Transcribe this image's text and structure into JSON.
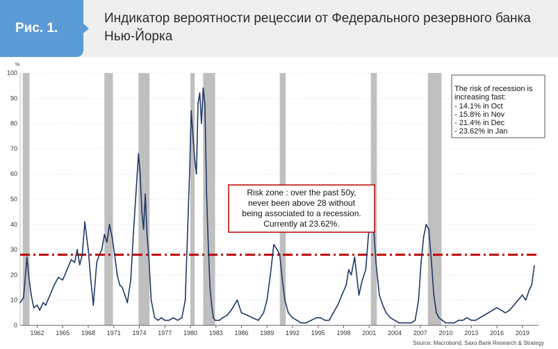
{
  "header": {
    "badge": "Рис. 1.",
    "title": "Индикатор вероятности рецессии от Федерального резервного банка Нью-Йорка"
  },
  "chart_data": {
    "type": "line",
    "y_unit": "%",
    "xlim": [
      1960,
      2020.9
    ],
    "ylim": [
      0,
      100
    ],
    "x_ticks": [
      1962,
      1965,
      1968,
      1971,
      1974,
      1977,
      1980,
      1983,
      1986,
      1989,
      1992,
      1995,
      1998,
      2001,
      2004,
      2007,
      2010,
      2013,
      2016,
      2019
    ],
    "y_ticks": [
      0,
      10,
      20,
      30,
      40,
      50,
      60,
      70,
      80,
      90,
      100
    ],
    "recessions": [
      [
        1960.3,
        1961.1
      ],
      [
        1969.9,
        1970.9
      ],
      [
        1973.9,
        1975.2
      ],
      [
        1980.0,
        1980.5
      ],
      [
        1981.5,
        1982.9
      ],
      [
        1990.5,
        1991.2
      ],
      [
        2001.2,
        2001.9
      ],
      [
        2007.9,
        2009.5
      ]
    ],
    "threshold": 28,
    "series": [
      {
        "x": [
          1960.0,
          1960.4,
          1960.8,
          1961.0,
          1961.3,
          1961.6,
          1962.0,
          1962.3,
          1962.7,
          1963.0,
          1963.5,
          1964.0,
          1964.5,
          1965.0,
          1965.5,
          1966.0,
          1966.4,
          1966.7,
          1967.0,
          1967.3,
          1967.6,
          1968.0,
          1968.3,
          1968.6,
          1969.0,
          1969.3,
          1969.6,
          1969.9,
          1970.2,
          1970.5,
          1970.8,
          1971.1,
          1971.4,
          1971.7,
          1972.0,
          1972.3,
          1972.6,
          1973.0,
          1973.3,
          1973.6,
          1973.9,
          1974.1,
          1974.3,
          1974.5,
          1974.7,
          1974.9,
          1975.1,
          1975.4,
          1975.8,
          1976.2,
          1976.6,
          1977.0,
          1977.5,
          1978.0,
          1978.5,
          1979.0,
          1979.4,
          1979.7,
          1979.9,
          1980.1,
          1980.3,
          1980.5,
          1980.7,
          1980.9,
          1981.1,
          1981.3,
          1981.5,
          1981.7,
          1981.9,
          1982.1,
          1982.3,
          1982.5,
          1982.7,
          1982.9,
          1983.1,
          1983.4,
          1983.8,
          1984.3,
          1984.8,
          1985.5,
          1986.0,
          1986.7,
          1987.3,
          1988.0,
          1988.6,
          1989.0,
          1989.4,
          1989.8,
          1990.2,
          1990.5,
          1990.8,
          1991.1,
          1991.5,
          1992.0,
          1992.5,
          1993.0,
          1993.6,
          1994.2,
          1994.8,
          1995.3,
          1995.8,
          1996.3,
          1996.8,
          1997.3,
          1997.8,
          1998.3,
          1998.6,
          1998.9,
          1999.3,
          1999.8,
          2000.2,
          2000.6,
          2000.9,
          2001.2,
          2001.5,
          2001.8,
          2002.2,
          2002.6,
          2003.0,
          2003.5,
          2004.0,
          2004.5,
          2005.0,
          2005.5,
          2006.0,
          2006.4,
          2006.8,
          2007.1,
          2007.4,
          2007.7,
          2008.0,
          2008.3,
          2008.6,
          2008.9,
          2009.2,
          2009.6,
          2010.0,
          2010.5,
          2011.0,
          2011.5,
          2012.0,
          2012.5,
          2013.0,
          2013.5,
          2014.0,
          2014.5,
          2015.0,
          2015.5,
          2016.0,
          2016.5,
          2017.0,
          2017.5,
          2018.0,
          2018.5,
          2019.0,
          2019.4,
          2019.8,
          2020.1,
          2020.4
        ],
        "y": [
          9,
          11,
          27,
          20,
          12,
          7,
          8,
          6,
          9,
          8,
          12,
          16,
          19,
          18,
          22,
          26,
          25,
          30,
          24,
          28,
          41,
          30,
          18,
          8,
          25,
          28,
          30,
          36,
          33,
          40,
          35,
          28,
          20,
          16,
          15,
          12,
          9,
          18,
          36,
          52,
          68,
          60,
          45,
          38,
          52,
          36,
          28,
          10,
          3,
          2,
          3,
          2,
          2,
          3,
          2,
          3,
          10,
          40,
          60,
          85,
          75,
          66,
          60,
          88,
          92,
          80,
          94,
          88,
          52,
          32,
          15,
          8,
          3,
          2,
          2,
          2,
          3,
          4,
          6,
          10,
          5,
          4,
          3,
          2,
          5,
          10,
          20,
          32,
          30,
          28,
          18,
          10,
          5,
          3,
          2,
          1,
          1,
          2,
          3,
          3,
          2,
          2,
          5,
          8,
          12,
          16,
          22,
          20,
          27,
          12,
          18,
          22,
          35,
          45,
          40,
          25,
          12,
          8,
          5,
          3,
          2,
          1,
          1,
          1,
          1,
          2,
          10,
          25,
          35,
          40,
          38,
          26,
          12,
          5,
          3,
          2,
          1,
          1,
          1,
          2,
          2,
          3,
          2,
          2,
          3,
          4,
          5,
          6,
          7,
          6,
          5,
          6,
          8,
          10,
          12,
          10,
          14,
          16,
          23.6
        ]
      }
    ],
    "annotation_box": {
      "lines": [
        "Risk zone : over the past 50y,",
        "never been above 28 without",
        "being associated to a recession.",
        "Currently at 23.62%."
      ]
    },
    "legend_box": {
      "lines": [
        "The risk of recession is",
        "increasing fast:",
        "- 14.1% in Oct",
        "- 15.8% in Nov",
        "- 21.4% in Dec",
        "- 23.62% in Jan"
      ]
    },
    "source": "Source: Macrobond, Saxo Bank Research & Strategy",
    "colors": {
      "line": "#1f3864",
      "recession": "#bfbfbf",
      "threshold": "#c00000",
      "annotation_border": "#c00000",
      "grid": "#dddddd"
    }
  }
}
